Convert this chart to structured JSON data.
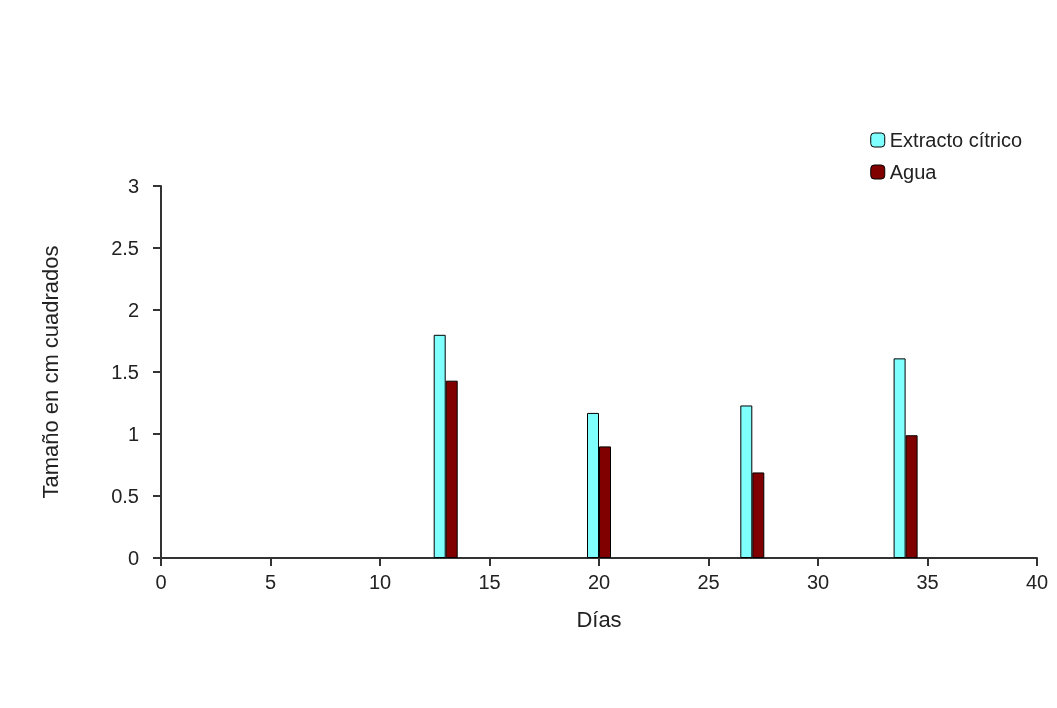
{
  "chart_data": {
    "type": "bar",
    "xlabel": "Días",
    "ylabel": "Tamaño en cm cuadrados",
    "x": [
      13,
      20,
      27,
      34
    ],
    "series": [
      {
        "name": "Extracto cítrico",
        "color": "#80ffff",
        "values": [
          1.8,
          1.17,
          1.23,
          1.61
        ]
      },
      {
        "name": "Agua",
        "color": "#800000",
        "values": [
          1.43,
          0.9,
          0.69,
          0.99
        ]
      }
    ],
    "xlim": [
      0,
      40
    ],
    "xticks": [
      0,
      5,
      10,
      15,
      20,
      25,
      30,
      35,
      40
    ],
    "ylim": [
      0,
      3
    ],
    "yticks": [
      0,
      0.5,
      1,
      1.5,
      2,
      2.5,
      3
    ],
    "grid": false,
    "legend": "top right"
  }
}
